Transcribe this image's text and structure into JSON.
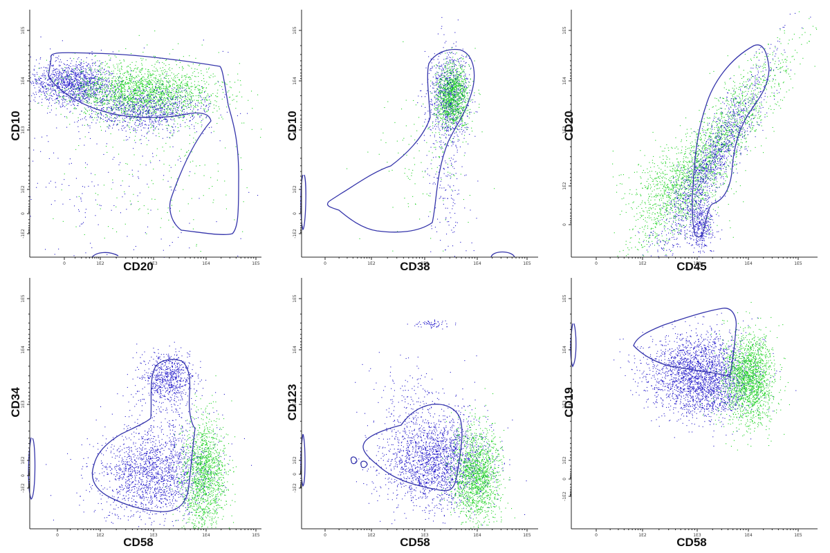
{
  "colors": {
    "populationA": "#1c12c8",
    "populationB": "#17d11b",
    "gate": "#3333aa",
    "axis": "#222222"
  },
  "chart_data": [
    {
      "type": "scatter",
      "xlabel": "CD20",
      "ylabel": "CD10",
      "x_ticks": [
        "0",
        "1E2",
        "1E3",
        "1E4",
        "1E5"
      ],
      "y_ticks": [
        "1E5",
        "1E4",
        "1E3",
        "1E2",
        "0",
        "-1E2"
      ],
      "series": [
        {
          "color": "blue",
          "clusters": [
            {
              "x": "1E2",
              "y": "1E4",
              "spread": "wide"
            },
            {
              "x": "1E3",
              "y": "3E3",
              "spread": "wide"
            }
          ]
        },
        {
          "color": "green",
          "clusters": [
            {
              "x": "3E3",
              "y": "5E3",
              "spread": "wide"
            }
          ]
        }
      ]
    },
    {
      "type": "scatter",
      "xlabel": "CD38",
      "ylabel": "CD10",
      "x_ticks": [
        "0",
        "1E2",
        "1E3",
        "1E4",
        "1E5"
      ],
      "y_ticks": [
        "1E5",
        "1E4",
        "1E3",
        "1E2",
        "0",
        "-1E2"
      ],
      "series": [
        {
          "color": "blue",
          "clusters": [
            {
              "x": "3E3",
              "y": "8E3",
              "spread": "tight"
            }
          ]
        },
        {
          "color": "green",
          "clusters": [
            {
              "x": "4E3",
              "y": "5E3",
              "spread": "tight"
            }
          ]
        }
      ]
    },
    {
      "type": "scatter",
      "xlabel": "CD45",
      "ylabel": "CD20",
      "x_ticks": [
        "0",
        "1E2",
        "1E3",
        "1E4",
        "1E5"
      ],
      "y_ticks": [
        "1E5",
        "1E4",
        "1E3",
        "1E2",
        "0"
      ],
      "series": [
        {
          "color": "blue",
          "clusters": [
            {
              "x": "1E3",
              "y": "1E2",
              "spread": "diagonal"
            }
          ]
        },
        {
          "color": "green",
          "clusters": [
            {
              "x": "3E3",
              "y": "3E3",
              "spread": "diagonal"
            }
          ]
        }
      ]
    },
    {
      "type": "scatter",
      "xlabel": "CD58",
      "ylabel": "CD34",
      "x_ticks": [
        "0",
        "1E2",
        "1E3",
        "1E4",
        "1E5"
      ],
      "y_ticks": [
        "1E5",
        "1E4",
        "1E3",
        "1E2",
        "0",
        "-1E2"
      ],
      "series": [
        {
          "color": "blue",
          "clusters": [
            {
              "x": "2E3",
              "y": "5E3",
              "spread": "tight"
            },
            {
              "x": "1E3",
              "y": "0",
              "spread": "wide"
            }
          ]
        },
        {
          "color": "green",
          "clusters": [
            {
              "x": "8E3",
              "y": "0",
              "spread": "tight"
            }
          ]
        }
      ]
    },
    {
      "type": "scatter",
      "xlabel": "CD58",
      "ylabel": "CD123",
      "x_ticks": [
        "0",
        "1E2",
        "1E3",
        "1E4",
        "1E5"
      ],
      "y_ticks": [
        "1E5",
        "1E4",
        "1E3",
        "1E2",
        "0",
        "-1E2"
      ],
      "series": [
        {
          "color": "blue",
          "clusters": [
            {
              "x": "2E3",
              "y": "50",
              "spread": "wide"
            }
          ]
        },
        {
          "color": "green",
          "clusters": [
            {
              "x": "7E3",
              "y": "20",
              "spread": "tight"
            }
          ]
        }
      ]
    },
    {
      "type": "scatter",
      "xlabel": "CD58",
      "ylabel": "CD19",
      "x_ticks": [
        "0",
        "1E2",
        "1E3",
        "1E4",
        "1E5"
      ],
      "y_ticks": [
        "1E5",
        "1E4",
        "1E3",
        "1E2",
        "0",
        "-1E2"
      ],
      "series": [
        {
          "color": "blue",
          "clusters": [
            {
              "x": "2E3",
              "y": "6E3",
              "spread": "wide"
            }
          ]
        },
        {
          "color": "green",
          "clusters": [
            {
              "x": "8E3",
              "y": "3E3",
              "spread": "tight"
            }
          ]
        }
      ]
    }
  ]
}
